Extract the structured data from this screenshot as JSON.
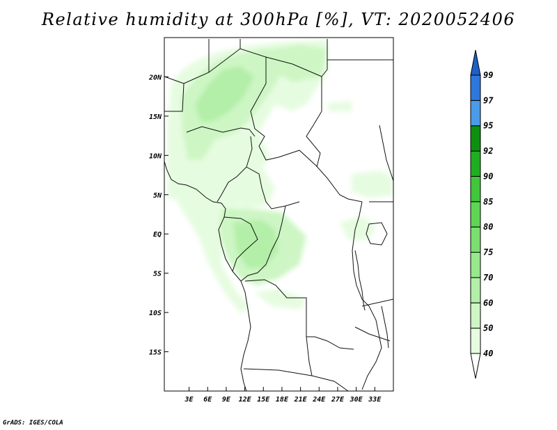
{
  "title": "Relative humidity at 300hPa [%], VT: 2020052406",
  "credit": "GrADS: IGES/COLA",
  "map": {
    "variable": "Relative humidity",
    "level": "300hPa",
    "units": "%",
    "valid_time": "2020052406",
    "lon_range_deg": [
      -1,
      36
    ],
    "lat_range_deg": [
      -20,
      25
    ],
    "lat_ticks": [
      {
        "value": 20,
        "label": "20N"
      },
      {
        "value": 15,
        "label": "15N"
      },
      {
        "value": 10,
        "label": "10N"
      },
      {
        "value": 5,
        "label": "5N"
      },
      {
        "value": 0,
        "label": "EQ"
      },
      {
        "value": -5,
        "label": "5S"
      },
      {
        "value": -10,
        "label": "10S"
      },
      {
        "value": -15,
        "label": "15S"
      }
    ],
    "lon_ticks": [
      {
        "value": 3,
        "label": "3E"
      },
      {
        "value": 6,
        "label": "6E"
      },
      {
        "value": 9,
        "label": "9E"
      },
      {
        "value": 12,
        "label": "12E"
      },
      {
        "value": 15,
        "label": "15E"
      },
      {
        "value": 18,
        "label": "18E"
      },
      {
        "value": 21,
        "label": "21E"
      },
      {
        "value": 24,
        "label": "24E"
      },
      {
        "value": 27,
        "label": "27E"
      },
      {
        "value": 30,
        "label": "30E"
      },
      {
        "value": 33,
        "label": "33E"
      }
    ]
  },
  "colorbar": {
    "levels": [
      "40",
      "50",
      "60",
      "70",
      "75",
      "80",
      "85",
      "90",
      "92",
      "95",
      "97",
      "99"
    ],
    "colors": [
      "#ffffff",
      "#e6fce0",
      "#cdf6c4",
      "#b3efa8",
      "#97e98c",
      "#7be070",
      "#5fd556",
      "#41c63c",
      "#1fae22",
      "#0e8f12",
      "#4c9be9",
      "#2e78dc",
      "#1f5fc8"
    ]
  },
  "colors": {
    "frame": "#000000",
    "border": "#111111",
    "background": "#ffffff"
  }
}
